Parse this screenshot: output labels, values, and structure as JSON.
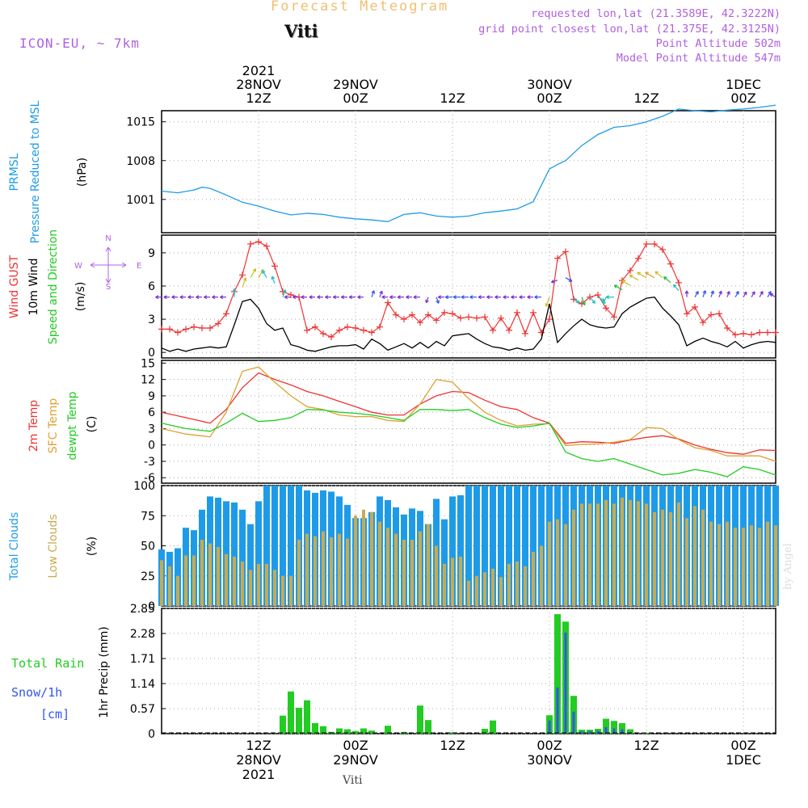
{
  "header": {
    "title": "Forecast Meteogram",
    "station": "Viti",
    "model": "ICON-EU, ~ 7km",
    "requested": "requested lon,lat (21.3589E, 42.3222N)",
    "gridpoint": "grid point closest lon,lat (21.375E, 42.3125N)",
    "point_alt": "Point Altitude 502m",
    "model_alt": "Model Point Altitude 547m",
    "footer_station": "Viti",
    "watermark": "by Angel"
  },
  "colors": {
    "pressure": "#1e9be8",
    "gust": "#ee3333",
    "wind": "#000000",
    "temp2m": "#ee3333",
    "sfctemp": "#e0a030",
    "dewpt": "#22cc22",
    "total_clouds": "#1e9be8",
    "low_clouds": "#c8aa50",
    "rain": "#22cc22",
    "snow": "#3355ee",
    "header_purple": "#b060e0",
    "title_orange": "#f0c070"
  },
  "time_axis": {
    "top_year": "2021",
    "top_ticks": [
      {
        "t": 12,
        "day": "28NOV",
        "hour": "12Z"
      },
      {
        "t": 24,
        "day": "29NOV",
        "hour": "00Z"
      },
      {
        "t": 36,
        "day": "",
        "hour": "12Z"
      },
      {
        "t": 48,
        "day": "30NOV",
        "hour": "00Z"
      },
      {
        "t": 60,
        "day": "",
        "hour": "12Z"
      },
      {
        "t": 72,
        "day": "1DEC",
        "hour": "00Z"
      }
    ],
    "bottom_ticks": [
      {
        "t": 12,
        "hour": "12Z",
        "day": "28NOV",
        "year": "2021"
      },
      {
        "t": 24,
        "hour": "00Z",
        "day": "29NOV",
        "year": ""
      },
      {
        "t": 36,
        "hour": "12Z",
        "day": "",
        "year": ""
      },
      {
        "t": 48,
        "hour": "00Z",
        "day": "30NOV",
        "year": ""
      },
      {
        "t": 60,
        "hour": "12Z",
        "day": "",
        "year": ""
      },
      {
        "t": 72,
        "hour": "00Z",
        "day": "1DEC",
        "year": ""
      }
    ]
  },
  "chart_data": [
    {
      "type": "line",
      "panel": "pressure",
      "labels": [
        "PRMSL",
        "Pressure Reduced to MSL",
        "(hPa)"
      ],
      "ylim": [
        995,
        1017
      ],
      "yticks": [
        1001,
        1008,
        1015
      ],
      "x": [
        0,
        2,
        4,
        5,
        6,
        8,
        10,
        12,
        14,
        16,
        18,
        20,
        22,
        24,
        26,
        28,
        30,
        32,
        34,
        36,
        38,
        40,
        42,
        44,
        46,
        48,
        49,
        50,
        52,
        54,
        56,
        58,
        60,
        62,
        64,
        66,
        68,
        70,
        72,
        74,
        76
      ],
      "values": [
        1002.5,
        1002.2,
        1002.7,
        1003.2,
        1003.0,
        1001.8,
        1000.5,
        999.8,
        998.9,
        998.2,
        998.5,
        998.3,
        997.8,
        997.5,
        997.3,
        997.0,
        998.3,
        998.6,
        998.0,
        997.8,
        998.0,
        998.6,
        998.9,
        999.3,
        1000.6,
        1006.5,
        1007.3,
        1008.0,
        1010.7,
        1012.7,
        1014.0,
        1014.3,
        1015.0,
        1016.0,
        1017.3,
        1017.0,
        1016.8,
        1017.1,
        1017.3,
        1017.6,
        1018.0
      ]
    },
    {
      "type": "line",
      "panel": "wind",
      "labels": [
        "Wind GUST",
        "10m Wind",
        "Speed and Direction",
        "(m/s)"
      ],
      "compass": {
        "n": "N",
        "s": "S",
        "e": "E",
        "w": "W"
      },
      "ylim": [
        -0.5,
        10.6
      ],
      "yticks": [
        0,
        3,
        6,
        9
      ],
      "x": [
        0,
        1,
        2,
        3,
        4,
        5,
        6,
        7,
        8,
        9,
        10,
        11,
        12,
        13,
        14,
        15,
        16,
        17,
        18,
        19,
        20,
        21,
        22,
        23,
        24,
        25,
        26,
        27,
        28,
        29,
        30,
        31,
        32,
        33,
        34,
        35,
        36,
        37,
        38,
        39,
        40,
        41,
        42,
        43,
        44,
        45,
        46,
        47,
        48,
        49,
        50,
        51,
        52,
        53,
        54,
        55,
        56,
        57,
        58,
        59,
        60,
        61,
        62,
        63,
        64,
        65,
        66,
        67,
        68,
        69,
        70,
        71,
        72,
        73,
        74,
        75,
        76
      ],
      "series": [
        {
          "name": "Wind GUST",
          "values": [
            2.1,
            2.1,
            1.8,
            2.1,
            2.3,
            2.2,
            2.2,
            2.6,
            3.5,
            5.5,
            7.0,
            9.8,
            10.0,
            9.6,
            7.8,
            5.5,
            5.2,
            5.0,
            2.0,
            2.3,
            1.7,
            1.4,
            2.0,
            2.3,
            2.2,
            2.0,
            1.8,
            2.3,
            4.5,
            3.4,
            3.0,
            3.4,
            2.7,
            3.4,
            2.9,
            3.6,
            3.5,
            3.1,
            3.2,
            3.1,
            3.2,
            2.0,
            3.1,
            2.0,
            3.6,
            1.7,
            3.6,
            1.8,
            3.0,
            8.5,
            9.1,
            4.8,
            4.4,
            5.0,
            5.2,
            4.0,
            3.2,
            6.5,
            7.4,
            8.5,
            9.8,
            9.8,
            9.3,
            8.0,
            6.3,
            3.5,
            4.1,
            2.7,
            3.4,
            3.5,
            2.2,
            1.6,
            1.7,
            1.6,
            1.8,
            1.8,
            1.8
          ]
        },
        {
          "name": "10m Wind",
          "values": [
            0.4,
            0.1,
            0.3,
            0.1,
            0.3,
            0.4,
            0.5,
            0.4,
            0.5,
            2.5,
            4.6,
            4.8,
            4.0,
            2.6,
            2.0,
            2.2,
            0.7,
            0.5,
            0.2,
            0.1,
            0.3,
            0.5,
            0.6,
            0.6,
            0.7,
            0.3,
            1.2,
            0.8,
            0.2,
            0.5,
            0.8,
            0.4,
            0.9,
            0.4,
            1.0,
            0.6,
            1.5,
            1.6,
            1.7,
            1.2,
            0.8,
            0.5,
            0.4,
            0.2,
            0.4,
            0.2,
            0.3,
            1.2,
            4.4,
            0.9,
            1.7,
            2.4,
            3.0,
            2.5,
            2.3,
            2.2,
            2.3,
            3.5,
            4.1,
            4.5,
            4.9,
            5.0,
            4.0,
            3.3,
            2.5,
            0.6,
            1.0,
            1.3,
            1.0,
            0.8,
            0.5,
            1.0,
            0.4,
            0.7,
            0.9,
            1.0,
            0.9
          ]
        }
      ],
      "direction_deg": [
        270,
        270,
        270,
        270,
        270,
        270,
        270,
        270,
        270,
        0,
        20,
        30,
        30,
        330,
        340,
        20,
        270,
        270,
        270,
        270,
        270,
        270,
        270,
        270,
        270,
        270,
        20,
        20,
        270,
        270,
        270,
        270,
        270,
        200,
        160,
        270,
        270,
        270,
        270,
        270,
        270,
        270,
        270,
        270,
        270,
        270,
        270,
        270,
        200,
        250,
        120,
        140,
        160,
        140,
        120,
        200,
        270,
        300,
        300,
        300,
        300,
        300,
        310,
        310,
        320,
        0,
        30,
        20,
        20,
        20,
        20,
        30,
        30,
        30,
        30,
        30,
        300
      ]
    },
    {
      "type": "line",
      "panel": "temperature",
      "labels": [
        "2m Temp",
        "SFC Temp",
        "dewpt Temp",
        "(C)"
      ],
      "ylim": [
        -7,
        15.5
      ],
      "yticks": [
        -6,
        -3,
        0,
        3,
        6,
        9,
        12,
        15
      ],
      "x": [
        0,
        3,
        6,
        8,
        10,
        12,
        14,
        16,
        18,
        20,
        22,
        24,
        26,
        28,
        30,
        32,
        34,
        36,
        38,
        40,
        42,
        44,
        46,
        48,
        50,
        52,
        54,
        56,
        58,
        60,
        62,
        64,
        66,
        68,
        70,
        72,
        74,
        76
      ],
      "series": [
        {
          "name": "2m Temp",
          "values": [
            6.0,
            5.0,
            4.0,
            6.5,
            10.5,
            13.2,
            12.0,
            11.0,
            9.8,
            9.0,
            8.0,
            7.0,
            6.0,
            5.5,
            5.5,
            7.5,
            9.0,
            9.8,
            9.6,
            8.2,
            7.0,
            6.5,
            5.0,
            4.0,
            0.3,
            0.6,
            0.5,
            0.3,
            0.9,
            1.4,
            1.7,
            1.1,
            0.0,
            -0.8,
            -1.4,
            -1.7,
            -0.9,
            -1.0
          ]
        },
        {
          "name": "SFC Temp",
          "values": [
            3.0,
            2.0,
            1.5,
            6.0,
            13.5,
            14.3,
            11.5,
            9.0,
            7.0,
            6.5,
            5.5,
            5.2,
            5.2,
            4.5,
            4.3,
            7.5,
            12.0,
            11.5,
            8.5,
            6.0,
            4.5,
            3.5,
            3.8,
            3.9,
            -0.1,
            0.1,
            0.2,
            0.5,
            1.0,
            3.2,
            3.0,
            1.0,
            -0.5,
            -1.0,
            -2.0,
            -2.0,
            -2.0,
            -3.0
          ]
        },
        {
          "name": "dewpt Temp",
          "values": [
            4.0,
            3.0,
            2.5,
            4.0,
            5.8,
            4.3,
            4.5,
            5.0,
            6.5,
            6.4,
            6.0,
            5.8,
            5.5,
            5.0,
            4.5,
            6.5,
            6.5,
            6.3,
            6.5,
            5.0,
            3.8,
            3.2,
            3.5,
            4.0,
            -1.3,
            -2.5,
            -3.0,
            -2.5,
            -3.5,
            -4.5,
            -5.5,
            -5.2,
            -4.5,
            -5.0,
            -5.8,
            -4.0,
            -4.5,
            -5.5
          ]
        }
      ]
    },
    {
      "type": "bar",
      "panel": "clouds",
      "labels": [
        "Total Clouds",
        "Low Clouds",
        "(%)"
      ],
      "ylim": [
        0,
        100
      ],
      "yticks": [
        0,
        25,
        50,
        75,
        100
      ],
      "x": [
        0,
        1,
        2,
        3,
        4,
        5,
        6,
        7,
        8,
        9,
        10,
        11,
        12,
        13,
        14,
        15,
        16,
        17,
        18,
        19,
        20,
        21,
        22,
        23,
        24,
        25,
        26,
        27,
        28,
        29,
        30,
        31,
        32,
        33,
        34,
        35,
        36,
        37,
        38,
        39,
        40,
        41,
        42,
        43,
        44,
        45,
        46,
        47,
        48,
        49,
        50,
        51,
        52,
        53,
        54,
        55,
        56,
        57,
        58,
        59,
        60,
        61,
        62,
        63,
        64,
        65,
        66,
        67,
        68,
        69,
        70,
        71,
        72,
        73,
        74,
        75,
        76
      ],
      "series": [
        {
          "name": "Total Clouds",
          "values": [
            47,
            45,
            48,
            65,
            63,
            80,
            91,
            90,
            87,
            86,
            80,
            68,
            87,
            100,
            100,
            100,
            100,
            100,
            96,
            94,
            96,
            95,
            91,
            84,
            73,
            73,
            78,
            91,
            88,
            82,
            76,
            81,
            79,
            68,
            89,
            72,
            91,
            92,
            100,
            100,
            100,
            100,
            100,
            100,
            100,
            100,
            100,
            100,
            100,
            100,
            100,
            100,
            100,
            100,
            100,
            100,
            100,
            100,
            100,
            100,
            100,
            100,
            100,
            100,
            100,
            100,
            100,
            100,
            100,
            100,
            100,
            100,
            100,
            100,
            100,
            100,
            100
          ]
        },
        {
          "name": "Low Clouds",
          "values": [
            38,
            33,
            25,
            42,
            42,
            55,
            52,
            49,
            43,
            41,
            37,
            30,
            35,
            35,
            30,
            25,
            25,
            55,
            60,
            58,
            62,
            57,
            60,
            56,
            75,
            80,
            78,
            70,
            65,
            60,
            55,
            55,
            62,
            68,
            50,
            35,
            40,
            41,
            21,
            25,
            28,
            31,
            24,
            35,
            37,
            33,
            45,
            50,
            70,
            72,
            68,
            80,
            85,
            85,
            85,
            88,
            85,
            90,
            88,
            87,
            85,
            78,
            80,
            78,
            86,
            73,
            83,
            80,
            70,
            68,
            70,
            65,
            65,
            67,
            65,
            70,
            67
          ]
        }
      ]
    },
    {
      "type": "bar",
      "panel": "precipitation",
      "labels": [
        "Total Rain",
        "Snow/1h",
        "[cm]",
        "1hr Precip (mm)"
      ],
      "ylim": [
        0,
        2.85
      ],
      "yticks": [
        0,
        0.57,
        1.14,
        1.71,
        2.28,
        2.85
      ],
      "x": [
        0,
        1,
        2,
        3,
        4,
        5,
        6,
        7,
        8,
        9,
        10,
        11,
        12,
        13,
        14,
        15,
        16,
        17,
        18,
        19,
        20,
        21,
        22,
        23,
        24,
        25,
        26,
        27,
        28,
        29,
        30,
        31,
        32,
        33,
        34,
        35,
        36,
        37,
        38,
        39,
        40,
        41,
        42,
        43,
        44,
        45,
        46,
        47,
        48,
        49,
        50,
        51,
        52,
        53,
        54,
        55,
        56,
        57,
        58,
        59,
        60,
        61,
        62,
        63,
        64,
        65,
        66,
        67,
        68,
        69,
        70,
        71,
        72,
        73,
        74,
        75,
        76
      ],
      "series": [
        {
          "name": "Total Rain",
          "values": [
            0,
            0,
            0,
            0,
            0,
            0,
            0,
            0,
            0,
            0,
            0,
            0,
            0,
            0,
            0,
            0.41,
            0.96,
            0.59,
            0.76,
            0.24,
            0.17,
            0.04,
            0.12,
            0.1,
            0.06,
            0.12,
            0.07,
            0,
            0.18,
            0,
            0.04,
            0,
            0.64,
            0.31,
            0,
            0,
            0.03,
            0,
            0,
            0,
            0.11,
            0.3,
            0,
            0,
            0,
            0,
            0,
            0,
            0.42,
            2.72,
            2.55,
            0.86,
            0.09,
            0.09,
            0.11,
            0.34,
            0.29,
            0.24,
            0.1,
            0,
            0.02,
            0,
            0,
            0,
            0,
            0,
            0,
            0,
            0,
            0,
            0,
            0,
            0,
            0,
            0,
            0,
            0
          ]
        },
        {
          "name": "Snow/1h",
          "values": [
            0,
            0,
            0,
            0,
            0,
            0,
            0,
            0,
            0,
            0,
            0,
            0,
            0,
            0,
            0,
            0,
            0,
            0,
            0,
            0,
            0,
            0,
            0,
            0,
            0,
            0,
            0,
            0,
            0,
            0,
            0,
            0,
            0,
            0,
            0,
            0,
            0,
            0,
            0,
            0,
            0,
            0,
            0,
            0,
            0,
            0,
            0,
            0,
            0.3,
            1.05,
            2.3,
            0.5,
            0.05,
            0.06,
            0.07,
            0.15,
            0.12,
            0.1,
            0.02,
            0,
            0,
            0,
            0,
            0,
            0,
            0,
            0,
            0,
            0,
            0,
            0,
            0,
            0,
            0,
            0,
            0,
            0
          ]
        }
      ]
    }
  ]
}
